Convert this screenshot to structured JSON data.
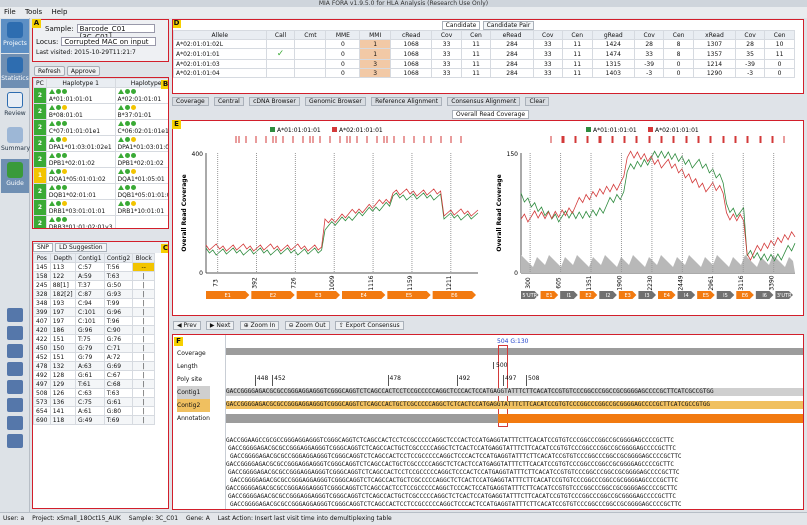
{
  "window_title": "MIA FORA v1.9.5.0 for HLA Analysis (Research Use Only)",
  "menu": [
    "File",
    "Tools",
    "Help"
  ],
  "nav": [
    {
      "label": "Projects",
      "active": true
    },
    {
      "label": "Statistics",
      "active": false
    },
    {
      "label": "Review",
      "active": false
    },
    {
      "label": "Summary",
      "active": false
    },
    {
      "label": "Guide",
      "active": false
    }
  ],
  "panel_labels": {
    "a": "A",
    "b": "B",
    "c": "C",
    "d": "D",
    "e": "E",
    "f": "F"
  },
  "sample": {
    "sample_label": "Sample:",
    "sample_value": "Barcode_C01 [3C_C01]",
    "locus_label": "Locus:",
    "locus_value": "Corrupted MAC on input",
    "last_visited": "Last visited: 2015-10-29T11:21:7"
  },
  "actions": {
    "refresh": "Refresh",
    "approve": "Approve"
  },
  "haplotypes": {
    "headers": [
      "PC",
      "Haplotype 1",
      "Haplotype 2"
    ],
    "rows": [
      {
        "pc": "2",
        "h1": "A*01:01:01:01",
        "h2": "A*02:01:01:01"
      },
      {
        "pc": "2",
        "h1": "B*08:01:01",
        "h2": "B*37:01:01"
      },
      {
        "pc": "2",
        "h1": "C*07:01:01:01e1",
        "h2": "C*06:02:01:01e1"
      },
      {
        "pc": "2",
        "h1": "DPA1*01:03:01:02e1",
        "h2": "DPA1*01:03:01:01e1"
      },
      {
        "pc": "2",
        "h1": "DPB1*02:01:02",
        "h2": "DPB1*02:01:02"
      },
      {
        "pc": "1",
        "h1": "DQA1*05:01:01:02",
        "h2": "DQA1*01:05:01"
      },
      {
        "pc": "2",
        "h1": "DQB1*02:01:01",
        "h2": "DQB1*05:01:01:02"
      },
      {
        "pc": "2",
        "h1": "DRB1*03:01:01:01",
        "h2": "DRB1*10:01:01"
      },
      {
        "pc": "2",
        "h1": "DRB3*01:01:02:01v3",
        "h2": ""
      }
    ]
  },
  "snp": {
    "tabs": [
      "SNP",
      "LD Suggestion"
    ],
    "headers": [
      "Pos",
      "Depth",
      "Contig1",
      "Contig2",
      "Block"
    ],
    "rows": [
      [
        "145",
        "113",
        "C:57",
        "T:56",
        "--"
      ],
      [
        "158",
        "122",
        "A:59",
        "T:63",
        "|"
      ],
      [
        "245",
        "88[1]",
        "T:37",
        "G:50",
        "|"
      ],
      [
        "328",
        "182[2]",
        "C:87",
        "G:93",
        "|"
      ],
      [
        "348",
        "193",
        "C:94",
        "T:99",
        "|"
      ],
      [
        "399",
        "197",
        "C:101",
        "G:96",
        "|"
      ],
      [
        "407",
        "197",
        "C:101",
        "T:96",
        "|"
      ],
      [
        "420",
        "186",
        "G:96",
        "C:90",
        "|"
      ],
      [
        "422",
        "151",
        "T:75",
        "G:76",
        "|"
      ],
      [
        "450",
        "150",
        "G:79",
        "C:71",
        "|"
      ],
      [
        "452",
        "151",
        "G:79",
        "A:72",
        "|"
      ],
      [
        "478",
        "132",
        "A:63",
        "G:69",
        "|"
      ],
      [
        "492",
        "128",
        "G:61",
        "C:67",
        "|"
      ],
      [
        "497",
        "129",
        "T:61",
        "C:68",
        "|"
      ],
      [
        "508",
        "126",
        "C:63",
        "T:63",
        "|"
      ],
      [
        "573",
        "136",
        "C:75",
        "G:61",
        "|"
      ],
      [
        "654",
        "141",
        "A:61",
        "G:80",
        "|"
      ],
      [
        "690",
        "118",
        "G:49",
        "T:69",
        "|"
      ]
    ]
  },
  "candidate": {
    "tabs": [
      "Candidate",
      "Candidate Pair"
    ],
    "headers": [
      "Allele",
      "Call",
      "Cmt",
      "MME",
      "MMI",
      "cRead",
      "Cov",
      "Cen",
      "eRead",
      "Cov",
      "Cen",
      "gRead",
      "Cov",
      "Cen",
      "xRead",
      "Cov",
      "Cen"
    ],
    "rows": [
      [
        "A*02:01:01:02L",
        "",
        "",
        "0",
        "1",
        "1068",
        "33",
        "11",
        "284",
        "33",
        "11",
        "1424",
        "28",
        "8",
        "1307",
        "28",
        "10"
      ],
      [
        "A*02:01:01:01",
        "✓",
        "",
        "0",
        "1",
        "1068",
        "33",
        "11",
        "284",
        "33",
        "11",
        "1474",
        "33",
        "8",
        "1357",
        "35",
        "11"
      ],
      [
        "A*02:01:01:03",
        "",
        "",
        "0",
        "3",
        "1068",
        "33",
        "11",
        "284",
        "33",
        "11",
        "1315",
        "-39",
        "0",
        "1214",
        "-39",
        "0"
      ],
      [
        "A*02:01:01:04",
        "",
        "",
        "0",
        "3",
        "1068",
        "33",
        "11",
        "284",
        "33",
        "11",
        "1403",
        "-3",
        "0",
        "1290",
        "-3",
        "0"
      ]
    ]
  },
  "toolbar": [
    "Coverage",
    "Central",
    "cDNA Browser",
    "Genomic Browser",
    "Reference Alignment",
    "Consensus Alignment",
    "Clear"
  ],
  "overall_tab": "Overall Read Coverage",
  "chart_left": {
    "legend": [
      "A*01:01:01:01",
      "A*02:01:01:01"
    ],
    "ylabel": "Overall Read Coverage",
    "ytick_top": "400",
    "ytick_zero": "0",
    "xticks": [
      "73",
      "392",
      "726",
      "1009",
      "1116",
      "1159",
      "1211"
    ],
    "exons": [
      "E1",
      "E2",
      "E3",
      "E4",
      "E5",
      "E6"
    ]
  },
  "chart_right": {
    "legend": [
      "A*01:01:01:01",
      "A*02:01:01:01"
    ],
    "ylabel": "Overall Read Coverage",
    "ytick_top": "150",
    "ytick_zero": "0",
    "xticks": [
      "300",
      "605",
      "1351",
      "1900",
      "2230",
      "2449",
      "2961",
      "3116",
      "3390"
    ],
    "exons": [
      "5'UTR",
      "E1",
      "I1",
      "E2",
      "I2",
      "E3",
      "I3",
      "E4",
      "I4",
      "E5",
      "I5",
      "E6",
      "I6",
      "3'UTR"
    ]
  },
  "chart_colors": {
    "series1": "#2e8b3e",
    "series2": "#d33a3a"
  },
  "nav_buttons": [
    "Prev",
    "Next",
    "Zoom In",
    "Zoom Out",
    "Export Consensus"
  ],
  "alignment": {
    "row_labels": [
      "Coverage",
      "Length",
      "Poly site",
      "Contig1",
      "Contig2",
      "Annotation"
    ],
    "position_marker": "504 G:130",
    "length_ticks": [
      "500"
    ],
    "poly_ticks": [
      "448",
      "452",
      "478",
      "492",
      "497",
      "508"
    ],
    "contig1_seq": "GACCGGGGAGACGCGCCGGGAGGAGGGTCGGGCAGGTCTCAGCCACTCCTCCGCCCCCAGGCTCCCACTCCATGAGGTATTTCTTCACATCCGTGTCCCGGCCCGGCCGCGGGGAGCCCCGCTTCATCGCCGTGG",
    "contig2_seq": "GACCGGGGAGACGCGCCGGGAGGAGGGTCGGGCAGGTCTCAGCCACTGCTCGCCCCCAGGCTCTCACTCCATGAGGTATTTCTTCACATCCGTGTCCCGGCCCGGCCGCGGGGAGCCCCGCTTCATCGCCGTGG",
    "reads": [
      "GACCGGAAGCCGCGCCGGGAGGAGGGTCGGGCAGGTCTCAGCCACTCCTCCGCCCCCAGGCTCCCACTCCATGAGGTATTTCTTCACATCCGTGTCCCGGCCCGGCCGCGGGGAGCCCCGCTTC",
      "GACCGGGGAGACGCGCCGGGAGGAGGGTCGGGCAGGTCTCAGCCACTGCTCGCCCCCAGGCTCTCACTCCATGAGGTATTTCTTCACATCCGTGTCCCGGCCCGGCCGCGGGGAGCCCCGCTTC",
      "GACCGGGGAGACGCGCCGGGAGGAGGGTCGGGCAGGTCTCAGCCACTCCTCCGCCCCCAGGCTCCCACTCCATGAGGTATTTCTTCACATCCGTGTCCCGGCCCGGCCGCGGGGAGCCCCGCTTC",
      "GACCGGGGAGACGCGCCGGGAGGAGGGTCGGGCAGGTCTCAGCCACTGCTCGCCCCCAGGCTCTCACTCCATGAGGTATTTCTTCACATCCGTGTCCCGGCCCGGCCGCGGGGAGCCCCGCTTC",
      "GACCGGGGAGACGCGCCGGGAGGAGGGTCGGGCAGGTCTCAGCCACTCCTCCGCCCCCAGGCTCCCACTCCATGAGGTATTTCTTCACATCCGTGTCCCGGCCCGGCCGCGGGGAGCCCCGCTTC",
      "GACCGGGGAGACGCGCCGGGAGGAGGGTCGGGCAGGTCTCAGCCACTGCTCGCCCCCAGGCTCTCACTCCATGAGGTATTTCTTCACATCCGTGTCCCGGCCCGGCCGCGGGGAGCCCCGCTTC",
      "GACCGGGGAGACGCGCCGGGAGGAGGGTCGGGCAGGTCTCAGCCACTCCTCCGCCCCCAGGCTCCCACTCCATGAGGTATTTCTTCACATCCGTGTCCCGGCCCGGCCGCGGGGAGCCCCGCTTC",
      "GACCGGGGAGACGCGCCGGGAGGAGGGTCGGGCAGGTCTCAGCCACTGCTCGCCCCCAGGCTCTCACTCCATGAGGTATTTCTTCACATCCGTGTCCCGGCCCGGCCGCGGGGAGCCCCGCTTC",
      "GACCGGGGAGACGCGCCGGGAGGAGGGTCGGGCAGGTCTCAGCCACTCCTCCGCCCCCAGGCTCCCACTCCATGAGGTATTTCTTCACATCCGTGTCCCGGCCCGGCCGCGGGGAGCCCCGCTTC"
    ]
  },
  "status": {
    "user": "User: a",
    "project": "Project: xSmall_18Oct15_AUK",
    "sample": "Sample: 3C_C01",
    "gene": "Gene: A",
    "action": "Last Action: Insert last visit time into demultiplexing table"
  }
}
